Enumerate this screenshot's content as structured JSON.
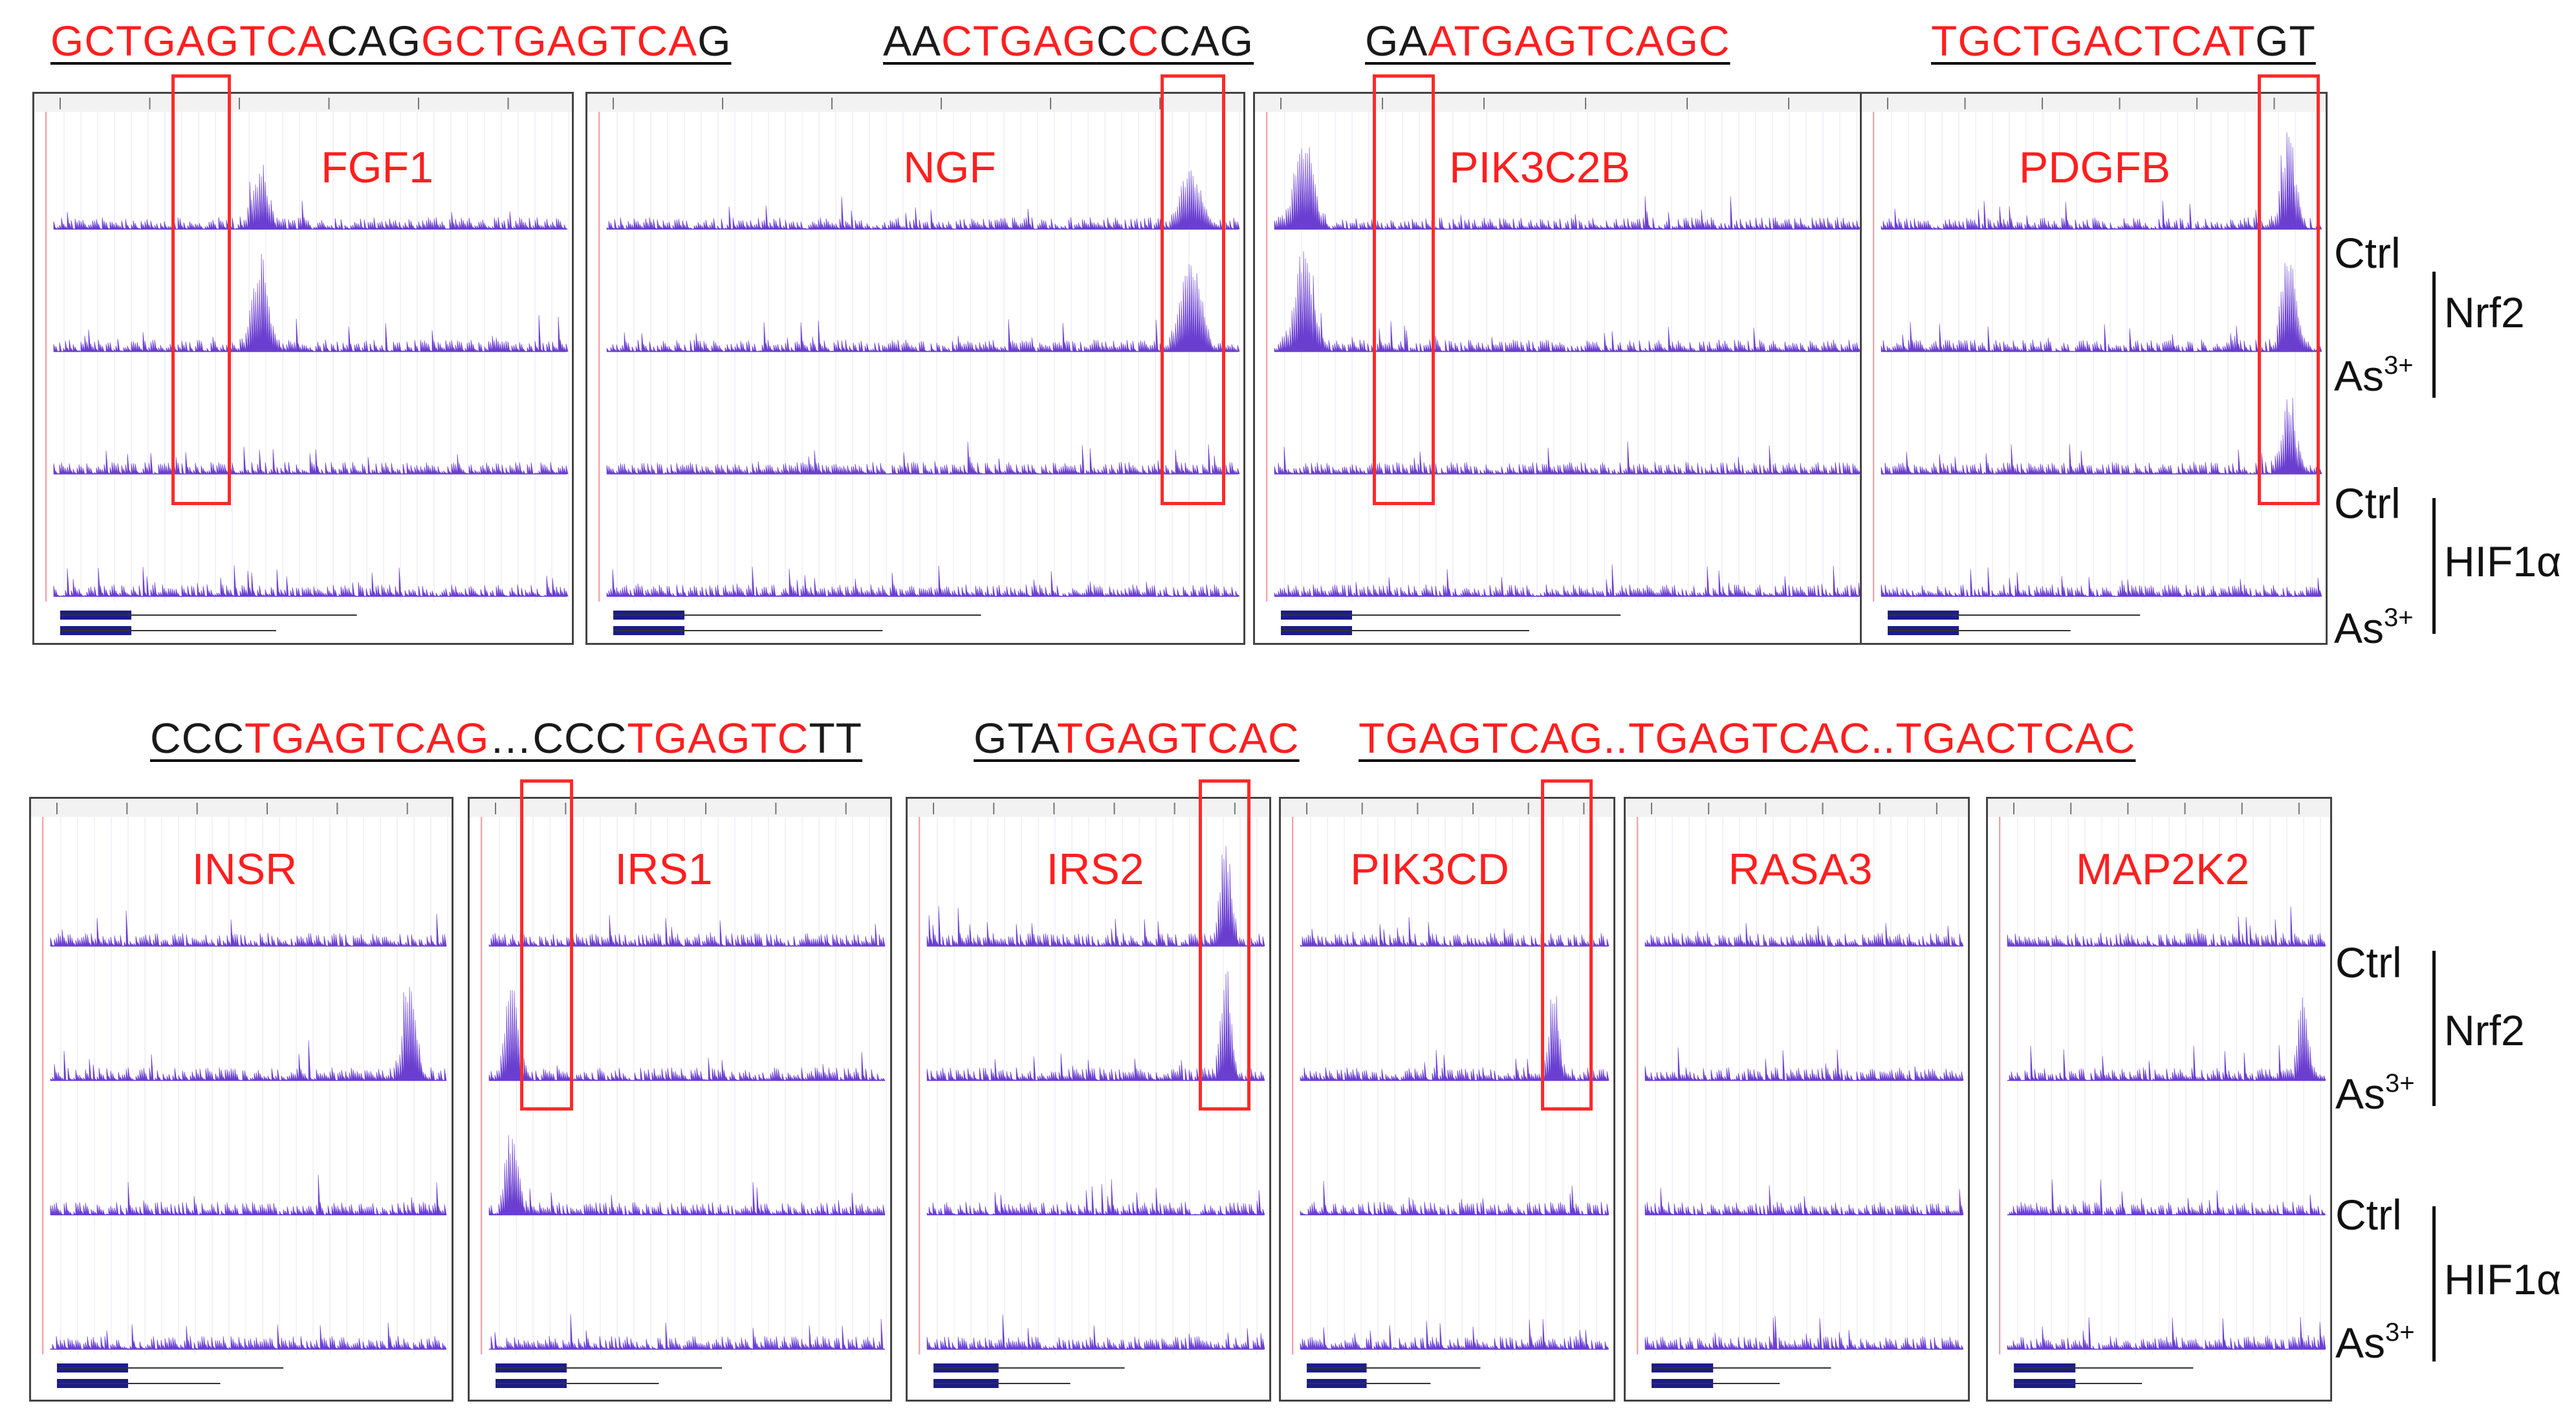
{
  "colors": {
    "signal": "#6a3fd0",
    "highlight": "#ff2a2a",
    "motif_red": "#ff1f1f",
    "text": "#111111"
  },
  "top_motifs": [
    {
      "segments": [
        {
          "text": "GCTGAGTCA",
          "color": "red"
        },
        {
          "text": "CAG",
          "color": "black"
        },
        {
          "text": "GCTGAGTCA",
          "color": "red"
        },
        {
          "text": "G",
          "color": "black"
        }
      ]
    },
    {
      "segments": [
        {
          "text": "AA",
          "color": "black"
        },
        {
          "text": "CTGAG",
          "color": "red"
        },
        {
          "text": "C",
          "color": "black"
        },
        {
          "text": "C",
          "color": "red"
        },
        {
          "text": "CAG",
          "color": "black"
        }
      ]
    },
    {
      "segments": [
        {
          "text": "GA",
          "color": "black"
        },
        {
          "text": "ATGAGTCAGC",
          "color": "red"
        }
      ]
    },
    {
      "segments": [
        {
          "text": "TGCTGACTCAT",
          "color": "red"
        },
        {
          "text": "GT",
          "color": "black"
        }
      ]
    }
  ],
  "bottom_motifs": [
    {
      "segments": [
        {
          "text": "CCC",
          "color": "black"
        },
        {
          "text": "TGAGTCAG",
          "color": "red"
        },
        {
          "text": "…CCC",
          "color": "black"
        },
        {
          "text": "TGAGTC",
          "color": "red"
        },
        {
          "text": "TT",
          "color": "black"
        }
      ]
    },
    {
      "segments": [
        {
          "text": "GTA",
          "color": "black"
        },
        {
          "text": "TGAGTCAC",
          "color": "red"
        }
      ]
    },
    {
      "segments": [
        {
          "text": "TGAGTCAG..TGAGTCAC..TGACTCAC",
          "color": "red"
        }
      ]
    }
  ],
  "genes": {
    "fgf1": "FGF1",
    "ngf": "NGF",
    "pik3c2b": "PIK3C2B",
    "pdgfb": "PDGFB",
    "insr": "INSR",
    "irs1": "IRS1",
    "irs2": "IRS2",
    "pik3cd": "PIK3CD",
    "rasa3": "RASA3",
    "map2k2": "MAP2K2"
  },
  "conditions": {
    "ctrl": "Ctrl",
    "as_base": "As",
    "as_sup": "3+"
  },
  "factors": {
    "nrf2": "Nrf2",
    "hif1a": "HIF1α"
  }
}
